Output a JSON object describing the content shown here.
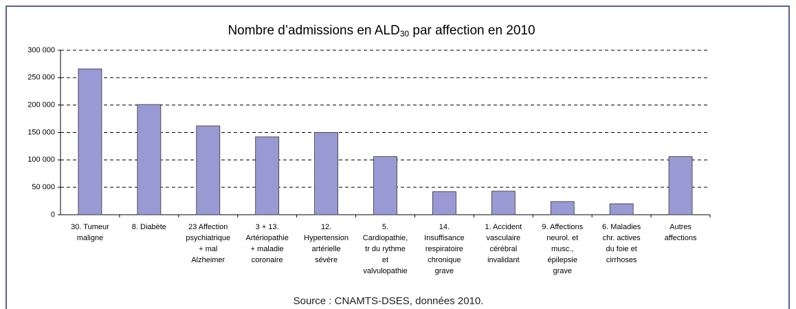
{
  "chart_data": {
    "type": "bar",
    "title_parts": [
      "Nombre d’admissions en ALD",
      "30",
      " par affection en 2010"
    ],
    "categories": [
      [
        "30. Tumeur",
        "maligne"
      ],
      [
        "8. Diabète"
      ],
      [
        "23 Affection",
        "psychiatrique",
        "+ mal",
        "Alzheimer"
      ],
      [
        "3 + 13.",
        "Artériopathie",
        "+ maladie",
        "coronaire"
      ],
      [
        "12.",
        "Hypertension",
        "artérielle",
        "sévère"
      ],
      [
        "5.",
        "Cardiopathie,",
        "tr du rythme",
        "et",
        "valvulopathie"
      ],
      [
        "14.",
        "Insuffisance",
        "respiratoire",
        "chronique",
        "grave"
      ],
      [
        "1. Accident",
        "vasculaire",
        "cérébral",
        "invalidant"
      ],
      [
        "9. Affections",
        "neurol. et",
        "musc.,",
        "épilepsie",
        "grave"
      ],
      [
        "6. Maladies",
        "chr. actives",
        "du foie et",
        "cirrhoses"
      ],
      [
        "Autres",
        "affections"
      ]
    ],
    "values": [
      266000,
      201000,
      162000,
      142000,
      150000,
      106000,
      42000,
      43000,
      24000,
      20000,
      106000
    ],
    "color": "#9999d4",
    "ylim": [
      0,
      300000
    ],
    "yticks": [
      0,
      {
        "value": 50000,
        "label": "50 000"
      },
      {
        "value": 100000,
        "label": "100 000"
      },
      {
        "value": 150000,
        "label": "150 000"
      },
      {
        "value": 200000,
        "label": "200 000"
      },
      {
        "value": 250000,
        "label": "250 000"
      },
      {
        "value": 300000,
        "label": "300 000"
      }
    ],
    "grid": true,
    "source": "Source : CNAMTS-DSES, données 2010."
  }
}
